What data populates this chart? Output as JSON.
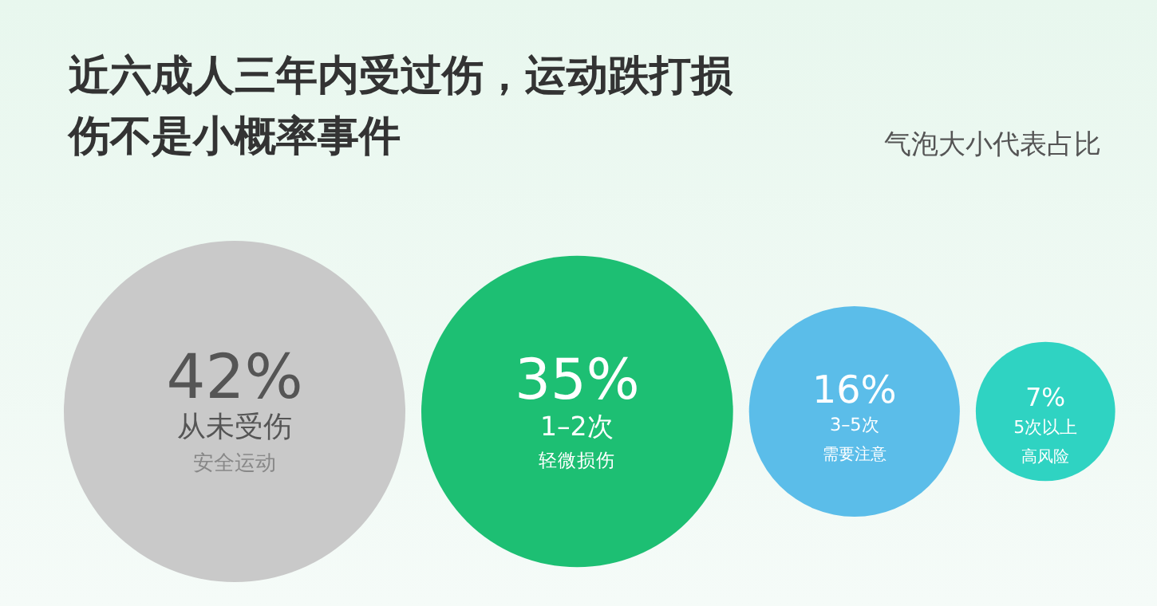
{
  "chart_data": {
    "type": "other",
    "title": "近六成人三年内受过伤，运动跌打损伤不是小概率事件",
    "subtitle": "气泡大小代表占比",
    "categories": [
      "从未受伤",
      "1–2次",
      "3–5次",
      "5次以上"
    ],
    "values": [
      42,
      35,
      16,
      7
    ],
    "value_labels": [
      "42%",
      "35%",
      "16%",
      "7%"
    ],
    "colors": [
      "#c9c9c9",
      "#1dbf73",
      "#5bbde9",
      "#2fd3c2"
    ],
    "annotations": [
      {
        "text": "安全运动",
        "x": "从未受伤"
      },
      {
        "text": "轻微损伤",
        "x": "1–2次"
      },
      {
        "text": "需要注意",
        "x": "3–5次"
      },
      {
        "text": "高风险",
        "x": "5次以上"
      }
    ]
  }
}
